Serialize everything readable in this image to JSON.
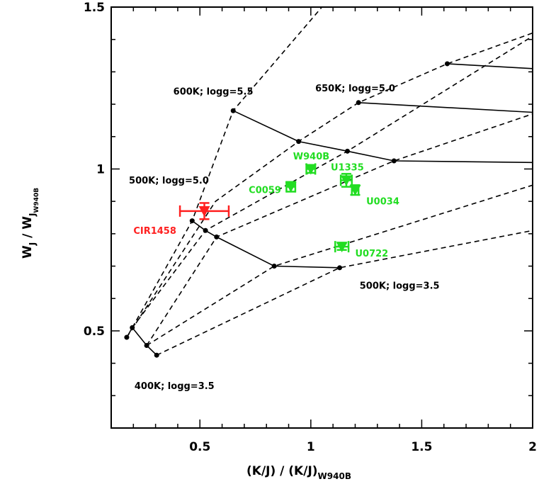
{
  "chart_data": {
    "type": "scatter",
    "title": "",
    "xlabel": {
      "main": "(K/J) / (K/J)",
      "sub": "W940B"
    },
    "ylabel": {
      "main": "W",
      "sub1": "J",
      "mid": " / W",
      "sub2": "J",
      "sub3": "W940B"
    },
    "xlim": [
      0.1,
      2.0
    ],
    "ylim": [
      0.2,
      1.5
    ],
    "xticks": [
      0.5,
      1.0,
      1.5,
      2.0
    ],
    "xtick_labels": [
      "0.5",
      "1",
      "1.5",
      "2"
    ],
    "yticks": [
      0.5,
      1.0,
      1.5
    ],
    "ytick_labels": [
      "0.5",
      "1",
      "1.5"
    ],
    "grid": false,
    "solid_lines": [
      {
        "name": "logg=5.5 sequence",
        "points": [
          [
            0.65,
            1.18
          ],
          [
            0.945,
            1.085
          ],
          [
            1.165,
            1.055
          ],
          [
            1.375,
            1.025
          ],
          [
            2.0,
            1.02
          ]
        ]
      },
      {
        "name": "logg=5.0 upper",
        "points": [
          [
            1.215,
            1.205
          ],
          [
            2.0,
            1.175
          ]
        ]
      },
      {
        "name": "logg=5.0 top",
        "points": [
          [
            1.615,
            1.325
          ],
          [
            2.0,
            1.31
          ]
        ]
      },
      {
        "name": "logg=5.0 low",
        "points": [
          [
            0.465,
            0.84
          ],
          [
            0.525,
            0.81
          ],
          [
            0.575,
            0.79
          ],
          [
            0.835,
            0.7
          ],
          [
            1.13,
            0.695
          ]
        ]
      },
      {
        "name": "logg=3.5 low",
        "points": [
          [
            0.17,
            0.48
          ],
          [
            0.195,
            0.51
          ],
          [
            0.26,
            0.455
          ],
          [
            0.305,
            0.425
          ]
        ]
      }
    ],
    "dashed_lines": [
      {
        "points": [
          [
            0.195,
            0.51
          ],
          [
            0.465,
            0.84
          ],
          [
            0.65,
            1.18
          ],
          [
            1.05,
            1.5
          ]
        ]
      },
      {
        "points": [
          [
            0.17,
            0.48
          ],
          [
            0.57,
            0.9
          ],
          [
            0.945,
            1.085
          ],
          [
            1.215,
            1.205
          ],
          [
            1.615,
            1.325
          ],
          [
            2.0,
            1.42
          ]
        ]
      },
      {
        "points": [
          [
            0.195,
            0.51
          ],
          [
            0.525,
            0.81
          ],
          [
            1.165,
            1.055
          ],
          [
            2.0,
            1.41
          ]
        ]
      },
      {
        "points": [
          [
            0.26,
            0.455
          ],
          [
            0.575,
            0.79
          ],
          [
            1.375,
            1.025
          ],
          [
            2.0,
            1.17
          ]
        ]
      },
      {
        "points": [
          [
            0.26,
            0.455
          ],
          [
            0.835,
            0.7
          ],
          [
            2.0,
            0.95
          ]
        ]
      },
      {
        "points": [
          [
            0.305,
            0.425
          ],
          [
            1.13,
            0.695
          ],
          [
            2.0,
            0.81
          ]
        ]
      }
    ],
    "grid_points": [
      [
        0.17,
        0.48
      ],
      [
        0.195,
        0.51
      ],
      [
        0.26,
        0.455
      ],
      [
        0.305,
        0.425
      ],
      [
        0.465,
        0.84
      ],
      [
        0.525,
        0.81
      ],
      [
        0.575,
        0.79
      ],
      [
        0.835,
        0.7
      ],
      [
        1.13,
        0.695
      ],
      [
        0.65,
        1.18
      ],
      [
        0.945,
        1.085
      ],
      [
        1.165,
        1.055
      ],
      [
        1.375,
        1.025
      ],
      [
        1.215,
        1.205
      ],
      [
        1.615,
        1.325
      ]
    ],
    "model_labels": [
      {
        "text": "600K; logg=5.5",
        "x": 0.38,
        "y": 1.23
      },
      {
        "text": "650K; logg=5.0",
        "x": 1.02,
        "y": 1.24
      },
      {
        "text": "500K; logg=5.0",
        "x": 0.18,
        "y": 0.955
      },
      {
        "text": "500K; logg=3.5",
        "x": 1.22,
        "y": 0.63
      },
      {
        "text": "400K; logg=3.5",
        "x": 0.205,
        "y": 0.32
      }
    ],
    "objects": [
      {
        "name": "CIR1458",
        "x": 0.52,
        "y": 0.87,
        "xerr": 0.11,
        "yerr": 0.025,
        "color": "#ff2020",
        "label_x": 0.2,
        "label_y": 0.8
      },
      {
        "name": "W940B",
        "x": 1.0,
        "y": 1.0,
        "xerr": 0.02,
        "yerr": 0.012,
        "color": "#22dd22",
        "label_x": 0.92,
        "label_y": 1.03
      },
      {
        "name": "U1335",
        "x": 1.16,
        "y": 0.965,
        "xerr": 0.025,
        "yerr": 0.02,
        "color": "#22dd22",
        "label_x": 1.09,
        "label_y": 0.995
      },
      {
        "name": "C0059",
        "x": 0.91,
        "y": 0.945,
        "xerr": 0.02,
        "yerr": 0.015,
        "color": "#22dd22",
        "label_x": 0.72,
        "label_y": 0.925
      },
      {
        "name": "U0034",
        "x": 1.2,
        "y": 0.935,
        "xerr": 0.015,
        "yerr": 0.015,
        "color": "#22dd22",
        "label_x": 1.25,
        "label_y": 0.89
      },
      {
        "name": "U0722",
        "x": 1.14,
        "y": 0.76,
        "xerr": 0.03,
        "yerr": 0.01,
        "color": "#22dd22",
        "label_x": 1.2,
        "label_y": 0.73
      }
    ]
  }
}
